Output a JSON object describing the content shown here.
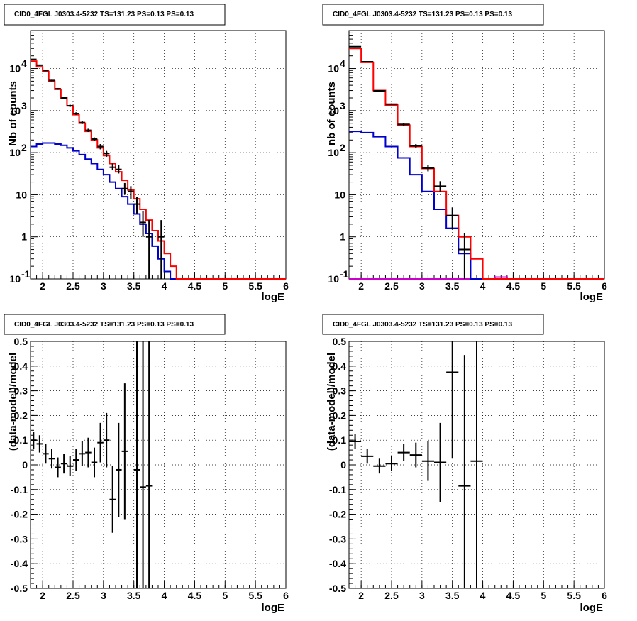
{
  "chart_data": [
    {
      "type": "histogram-log",
      "title": "CID0_4FGL J0303.4-5232 TS=131.23 PS=0.13 PS=0.13",
      "xlabel": "logE",
      "ylabel": "Nb of counts",
      "xlim": [
        1.8,
        6.0
      ],
      "ylim": [
        0.1,
        80000
      ],
      "log_y": true,
      "grid": true,
      "x_ticks": [
        "2",
        "2.5",
        "3",
        "3.5",
        "4",
        "4.5",
        "5",
        "5.5",
        "6"
      ],
      "y_ticks": [
        {
          "value": 0.1,
          "label": "10",
          "exp": "-1"
        },
        {
          "value": 1,
          "label": "1",
          "exp": ""
        },
        {
          "value": 10,
          "label": "10",
          "exp": ""
        },
        {
          "value": 100,
          "label": "10",
          "exp": "2"
        },
        {
          "value": 1000,
          "label": "10",
          "exp": "3"
        },
        {
          "value": 10000,
          "label": "10",
          "exp": "4"
        }
      ],
      "colors": {
        "model": "#ff0000",
        "component": "#0000cc",
        "data": "#000000"
      },
      "bin_edges": [
        1.8,
        1.9,
        2.0,
        2.1,
        2.2,
        2.3,
        2.4,
        2.5,
        2.6,
        2.7,
        2.8,
        2.9,
        3.0,
        3.1,
        3.2,
        3.3,
        3.4,
        3.5,
        3.6,
        3.7,
        3.8,
        3.9,
        4.0,
        4.1,
        4.2,
        4.3,
        4.4,
        4.5,
        4.6,
        4.7,
        4.8,
        4.9,
        5.0,
        5.1,
        5.2,
        5.3,
        5.4,
        5.5,
        5.6,
        5.7,
        5.8,
        5.9,
        6.0
      ],
      "series": [
        {
          "values": [
            15000,
            11000,
            8500,
            5000,
            3200,
            2000,
            1300,
            800,
            500,
            320,
            200,
            130,
            85,
            55,
            35,
            22,
            13,
            8,
            4.5,
            2.5,
            1.4,
            0.8,
            0.4,
            0.2,
            0.1,
            0.1,
            0.1,
            0.1,
            0.1,
            0.1,
            0.1,
            0.1,
            0.1,
            0.1,
            0.1,
            0.1,
            0.1,
            0.1,
            0.1,
            0.1,
            0.1,
            0.1
          ]
        },
        {
          "values": [
            140,
            160,
            170,
            170,
            160,
            150,
            130,
            110,
            90,
            70,
            55,
            40,
            30,
            20,
            14,
            9,
            6,
            3.5,
            2,
            1.2,
            0.6,
            0.3,
            0.15,
            0.1,
            0.1,
            0.1,
            0.1,
            0.1,
            0.1,
            0.1,
            0.1,
            0.1,
            0.1,
            0.1,
            0.1,
            0.1,
            0.1,
            0.1,
            0.1,
            0.1,
            0.1,
            0.1
          ]
        }
      ],
      "data_points": [
        {
          "x": 1.85,
          "y": 16500,
          "ylo": 16000,
          "yhi": 17000
        },
        {
          "x": 1.95,
          "y": 12000,
          "ylo": 11600,
          "yhi": 12400
        },
        {
          "x": 2.05,
          "y": 9000,
          "ylo": 8700,
          "yhi": 9300
        },
        {
          "x": 2.15,
          "y": 5200,
          "ylo": 5000,
          "yhi": 5400
        },
        {
          "x": 2.25,
          "y": 3300,
          "ylo": 3150,
          "yhi": 3450
        },
        {
          "x": 2.35,
          "y": 2000,
          "ylo": 1900,
          "yhi": 2100
        },
        {
          "x": 2.45,
          "y": 1300,
          "ylo": 1220,
          "yhi": 1380
        },
        {
          "x": 2.55,
          "y": 850,
          "ylo": 790,
          "yhi": 910
        },
        {
          "x": 2.65,
          "y": 520,
          "ylo": 480,
          "yhi": 560
        },
        {
          "x": 2.75,
          "y": 340,
          "ylo": 310,
          "yhi": 370
        },
        {
          "x": 2.85,
          "y": 210,
          "ylo": 190,
          "yhi": 230
        },
        {
          "x": 2.95,
          "y": 140,
          "ylo": 120,
          "yhi": 160
        },
        {
          "x": 3.05,
          "y": 95,
          "ylo": 80,
          "yhi": 110
        },
        {
          "x": 3.15,
          "y": 45,
          "ylo": 38,
          "yhi": 55
        },
        {
          "x": 3.25,
          "y": 40,
          "ylo": 32,
          "yhi": 50
        },
        {
          "x": 3.35,
          "y": 14,
          "ylo": 10,
          "yhi": 19
        },
        {
          "x": 3.45,
          "y": 12,
          "ylo": 8,
          "yhi": 16
        },
        {
          "x": 3.55,
          "y": 6,
          "ylo": 3.6,
          "yhi": 9
        },
        {
          "x": 3.65,
          "y": 2.2,
          "ylo": 1.0,
          "yhi": 4
        },
        {
          "x": 3.75,
          "y": 1.0,
          "ylo": 0.1,
          "yhi": 2.5
        },
        {
          "x": 3.95,
          "y": 1.0,
          "ylo": 0.1,
          "yhi": 2.5
        }
      ]
    },
    {
      "type": "histogram-log",
      "title": "CID0_4FGL J0303.4-5232 TS=131.23 PS=0.13 PS=0.13",
      "xlabel": "logE",
      "ylabel": "nb of counts",
      "xlim": [
        1.8,
        6.0
      ],
      "ylim": [
        0.1,
        80000
      ],
      "log_y": true,
      "grid": true,
      "x_ticks": [
        "2",
        "2.5",
        "3",
        "3.5",
        "4",
        "4.5",
        "5",
        "5.5",
        "6"
      ],
      "y_ticks": [
        {
          "value": 0.1,
          "label": "10",
          "exp": "-1"
        },
        {
          "value": 1,
          "label": "1",
          "exp": ""
        },
        {
          "value": 10,
          "label": "10",
          "exp": ""
        },
        {
          "value": 100,
          "label": "10",
          "exp": "2"
        },
        {
          "value": 1000,
          "label": "10",
          "exp": "3"
        },
        {
          "value": 10000,
          "label": "10",
          "exp": "4"
        }
      ],
      "colors": {
        "model": "#ff0000",
        "component": "#0000cc",
        "data": "#000000",
        "extra": "#cc00cc"
      },
      "bin_edges": [
        1.8,
        2.0,
        2.2,
        2.4,
        2.6,
        2.8,
        3.0,
        3.2,
        3.4,
        3.6,
        3.8,
        4.0,
        4.2,
        4.4,
        4.6,
        4.8,
        5.0,
        5.2,
        5.4,
        5.6,
        5.8,
        6.0
      ],
      "series": [
        {
          "values": [
            30000,
            14000,
            3000,
            1350,
            450,
            140,
            42,
            12,
            3.2,
            1.0,
            0.3,
            0.1,
            0.1,
            0.1,
            0.1,
            0.1,
            0.1,
            0.1,
            0.1,
            0.1,
            0.1
          ]
        },
        {
          "values": [
            320,
            300,
            240,
            140,
            75,
            30,
            12,
            4.5,
            1.6,
            0.4,
            0.1,
            0.1,
            0.1,
            0.1,
            0.1,
            0.1,
            0.1,
            0.1,
            0.1,
            0.1,
            0.1
          ]
        },
        {
          "values": [
            0.1,
            0.1,
            0.1,
            0.1,
            0.1,
            0.1,
            0.1,
            0.1,
            0.1,
            0.1,
            0.1,
            0.1,
            0.11,
            0.1,
            0.1,
            0.1,
            0.1,
            0.1,
            0.1,
            0.1,
            0.1
          ]
        }
      ],
      "data_points": [
        {
          "x": 1.9,
          "y": 33000,
          "ylo": 32000,
          "yhi": 34000
        },
        {
          "x": 2.1,
          "y": 14500,
          "ylo": 14000,
          "yhi": 15000
        },
        {
          "x": 2.3,
          "y": 2950,
          "ylo": 2850,
          "yhi": 3050
        },
        {
          "x": 2.5,
          "y": 1420,
          "ylo": 1360,
          "yhi": 1480
        },
        {
          "x": 2.7,
          "y": 470,
          "ylo": 440,
          "yhi": 500
        },
        {
          "x": 2.9,
          "y": 145,
          "ylo": 130,
          "yhi": 160
        },
        {
          "x": 3.1,
          "y": 43,
          "ylo": 36,
          "yhi": 50
        },
        {
          "x": 3.3,
          "y": 16,
          "ylo": 12,
          "yhi": 21
        },
        {
          "x": 3.5,
          "y": 3.2,
          "ylo": 1.5,
          "yhi": 5
        },
        {
          "x": 3.7,
          "y": 0.5,
          "ylo": 0.1,
          "yhi": 1.2
        }
      ]
    },
    {
      "type": "residual",
      "title": "CID0_4FGL J0303.4-5232 TS=131.23 PS=0.13 PS=0.13",
      "xlabel": "logE",
      "ylabel": "(data-model)/model",
      "xlim": [
        1.8,
        6.0
      ],
      "ylim": [
        -0.5,
        0.5
      ],
      "grid": true,
      "x_ticks": [
        "2",
        "2.5",
        "3",
        "3.5",
        "4",
        "4.5",
        "5",
        "5.5",
        "6"
      ],
      "y_ticks": [
        "-0.5",
        "-0.4",
        "-0.3",
        "-0.2",
        "-0.1",
        "0",
        "0.1",
        "0.2",
        "0.3",
        "0.4",
        "0.5"
      ],
      "bin_half_width": 0.05,
      "points": [
        {
          "x": 1.85,
          "y": 0.1,
          "err": 0.035
        },
        {
          "x": 1.95,
          "y": 0.085,
          "err": 0.035
        },
        {
          "x": 2.05,
          "y": 0.045,
          "err": 0.04
        },
        {
          "x": 2.15,
          "y": 0.025,
          "err": 0.04
        },
        {
          "x": 2.25,
          "y": -0.01,
          "err": 0.04
        },
        {
          "x": 2.35,
          "y": 0.005,
          "err": 0.04
        },
        {
          "x": 2.45,
          "y": -0.005,
          "err": 0.04
        },
        {
          "x": 2.55,
          "y": 0.02,
          "err": 0.045
        },
        {
          "x": 2.65,
          "y": 0.045,
          "err": 0.05
        },
        {
          "x": 2.75,
          "y": 0.05,
          "err": 0.06
        },
        {
          "x": 2.85,
          "y": 0.01,
          "err": 0.06
        },
        {
          "x": 2.95,
          "y": 0.09,
          "err": 0.08
        },
        {
          "x": 3.05,
          "y": 0.1,
          "err": 0.11
        },
        {
          "x": 3.15,
          "y": -0.14,
          "err": 0.135
        },
        {
          "x": 3.25,
          "y": -0.02,
          "err": 0.19
        },
        {
          "x": 3.35,
          "y": 0.055,
          "err": 0.275
        },
        {
          "x": 3.55,
          "y": -0.02,
          "err": 0.6
        },
        {
          "x": 3.65,
          "y": -0.09,
          "err": 0.7
        },
        {
          "x": 3.75,
          "y": -0.085,
          "err": 0.7
        }
      ]
    },
    {
      "type": "residual",
      "title": "CID0_4FGL J0303.4-5232 TS=131.23 PS=0.13 PS=0.13",
      "xlabel": "logE",
      "ylabel": "(data-model)/model",
      "xlim": [
        1.8,
        6.0
      ],
      "ylim": [
        -0.5,
        0.5
      ],
      "grid": true,
      "x_ticks": [
        "2",
        "2.5",
        "3",
        "3.5",
        "4",
        "4.5",
        "5",
        "5.5",
        "6"
      ],
      "y_ticks": [
        "-0.5",
        "-0.4",
        "-0.3",
        "-0.2",
        "-0.1",
        "0",
        "0.1",
        "0.2",
        "0.3",
        "0.4",
        "0.5"
      ],
      "bin_half_width": 0.1,
      "points": [
        {
          "x": 1.9,
          "y": 0.095,
          "err": 0.03
        },
        {
          "x": 2.1,
          "y": 0.035,
          "err": 0.03
        },
        {
          "x": 2.3,
          "y": -0.005,
          "err": 0.03
        },
        {
          "x": 2.5,
          "y": 0.005,
          "err": 0.03
        },
        {
          "x": 2.7,
          "y": 0.05,
          "err": 0.035
        },
        {
          "x": 2.9,
          "y": 0.04,
          "err": 0.05
        },
        {
          "x": 3.1,
          "y": 0.015,
          "err": 0.08
        },
        {
          "x": 3.3,
          "y": 0.01,
          "err": 0.16
        },
        {
          "x": 3.5,
          "y": 0.375,
          "err": 0.35
        },
        {
          "x": 3.7,
          "y": -0.085,
          "err": 0.53
        },
        {
          "x": 3.9,
          "y": 0.015,
          "err": 0.7
        }
      ]
    }
  ]
}
